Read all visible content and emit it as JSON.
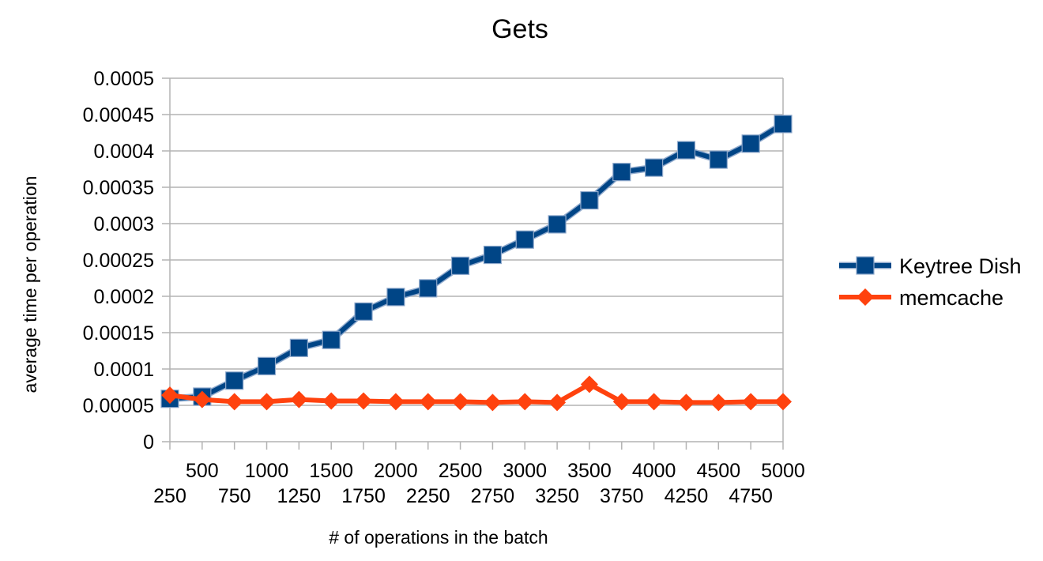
{
  "chart_data": {
    "type": "line",
    "title": "Gets",
    "xlabel": "# of operations in the batch",
    "ylabel": "average time per operation",
    "categories": [
      "250",
      "500",
      "750",
      "1000",
      "1250",
      "1500",
      "1750",
      "2000",
      "2250",
      "2500",
      "2750",
      "3000",
      "3250",
      "3500",
      "3750",
      "4000",
      "4250",
      "4500",
      "4750",
      "5000"
    ],
    "yticks": [
      "0",
      "0.00005",
      "0.0001",
      "0.00015",
      "0.0002",
      "0.00025",
      "0.0003",
      "0.00035",
      "0.0004",
      "0.00045",
      "0.0005"
    ],
    "ylim": [
      0,
      0.0005
    ],
    "grid": true,
    "legend_position": "right",
    "series": [
      {
        "name": "Keytree Dish",
        "color": "#004586",
        "marker": "square",
        "values": [
          5.9e-05,
          6.2e-05,
          8.4e-05,
          0.000104,
          0.000129,
          0.00014,
          0.000179,
          0.000199,
          0.000211,
          0.000242,
          0.000257,
          0.000278,
          0.000299,
          0.000332,
          0.000371,
          0.000377,
          0.000401,
          0.000388,
          0.00041,
          0.000437
        ]
      },
      {
        "name": "memcache",
        "color": "#ff420e",
        "marker": "diamond",
        "values": [
          6.4e-05,
          5.8e-05,
          5.5e-05,
          5.5e-05,
          5.8e-05,
          5.6e-05,
          5.6e-05,
          5.5e-05,
          5.5e-05,
          5.5e-05,
          5.4e-05,
          5.5e-05,
          5.4e-05,
          7.9e-05,
          5.5e-05,
          5.5e-05,
          5.4e-05,
          5.4e-05,
          5.5e-05,
          5.5e-05
        ]
      }
    ]
  }
}
